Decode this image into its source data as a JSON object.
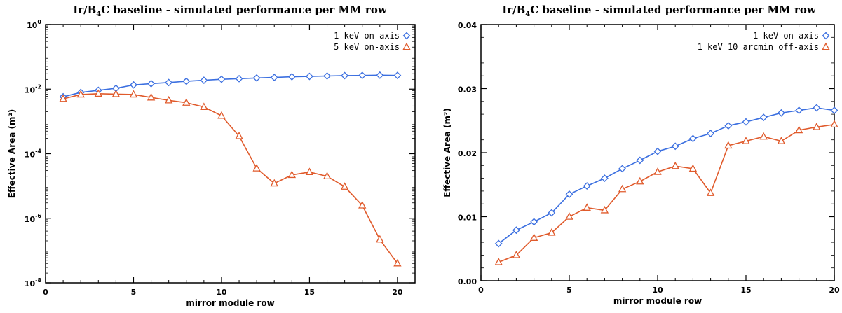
{
  "chart_data": [
    {
      "type": "line",
      "title": "Ir/B4C baseline - simulated performance per MM row",
      "xlabel": "mirror module row",
      "ylabel": "Effective Area (m²)",
      "xlim": [
        0,
        21
      ],
      "ylim": [
        1e-08,
        1
      ],
      "yscale": "log",
      "grid": false,
      "legend_position": "top-right",
      "x_ticks": [
        0,
        5,
        10,
        15,
        20
      ],
      "y_ticks": [
        {
          "value": 1,
          "base": "10",
          "exp": "0"
        },
        {
          "value": 0.01,
          "base": "10",
          "exp": "-2"
        },
        {
          "value": 0.0001,
          "base": "10",
          "exp": "-4"
        },
        {
          "value": 1e-06,
          "base": "10",
          "exp": "-6"
        },
        {
          "value": 1e-08,
          "base": "10",
          "exp": "-8"
        }
      ],
      "x": [
        1,
        2,
        3,
        4,
        5,
        6,
        7,
        8,
        9,
        10,
        11,
        12,
        13,
        14,
        15,
        16,
        17,
        18,
        19,
        20
      ],
      "series": [
        {
          "name": "1 keV on-axis",
          "color": "#3b6fe0",
          "marker": "diamond",
          "values": [
            0.0058,
            0.0079,
            0.0092,
            0.0106,
            0.0135,
            0.0148,
            0.016,
            0.0175,
            0.0188,
            0.0202,
            0.021,
            0.0222,
            0.023,
            0.0242,
            0.0248,
            0.0255,
            0.0262,
            0.0266,
            0.027,
            0.0266
          ]
        },
        {
          "name": "5 keV on-axis",
          "color": "#e05a2b",
          "marker": "triangle",
          "values": [
            0.005,
            0.0068,
            0.0072,
            0.007,
            0.0068,
            0.0055,
            0.0045,
            0.0038,
            0.0028,
            0.0015,
            0.00035,
            3.5e-05,
            1.2e-05,
            2.2e-05,
            2.7e-05,
            2e-05,
            9.5e-06,
            2.5e-06,
            2.2e-07,
            4e-08
          ]
        }
      ]
    },
    {
      "type": "line",
      "title": "Ir/B4C baseline - simulated performance per MM row",
      "xlabel": "mirror module row",
      "ylabel": "Effective Area (m²)",
      "xlim": [
        0,
        20
      ],
      "ylim": [
        0,
        0.04
      ],
      "yscale": "linear",
      "grid": false,
      "legend_position": "top-right",
      "x_ticks": [
        0,
        5,
        10,
        15,
        20
      ],
      "y_ticks": [
        {
          "value": 0.0,
          "label": "0.00"
        },
        {
          "value": 0.01,
          "label": "0.01"
        },
        {
          "value": 0.02,
          "label": "0.02"
        },
        {
          "value": 0.03,
          "label": "0.03"
        },
        {
          "value": 0.04,
          "label": "0.04"
        }
      ],
      "x": [
        1,
        2,
        3,
        4,
        5,
        6,
        7,
        8,
        9,
        10,
        11,
        12,
        13,
        14,
        15,
        16,
        17,
        18,
        19,
        20
      ],
      "series": [
        {
          "name": "1 keV on-axis",
          "color": "#3b6fe0",
          "marker": "diamond",
          "values": [
            0.0058,
            0.0079,
            0.0092,
            0.0106,
            0.0135,
            0.0148,
            0.016,
            0.0175,
            0.0188,
            0.0202,
            0.021,
            0.0222,
            0.023,
            0.0242,
            0.0248,
            0.0255,
            0.0262,
            0.0266,
            0.027,
            0.0266
          ]
        },
        {
          "name": "1 keV 10 arcmin off-axis",
          "color": "#e05a2b",
          "marker": "triangle",
          "values": [
            0.0029,
            0.004,
            0.0067,
            0.0075,
            0.01,
            0.0114,
            0.011,
            0.0143,
            0.0155,
            0.017,
            0.0179,
            0.0175,
            0.0137,
            0.0211,
            0.0218,
            0.0225,
            0.0218,
            0.0235,
            0.024,
            0.0244
          ]
        }
      ]
    }
  ]
}
